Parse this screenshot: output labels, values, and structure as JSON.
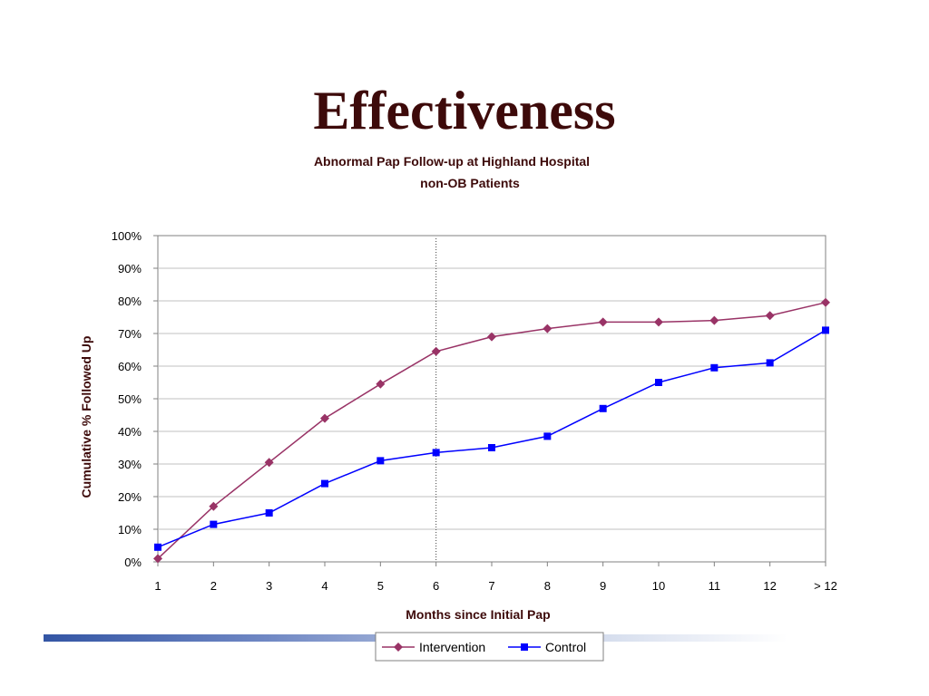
{
  "slide": {
    "title": "Effectiveness"
  },
  "colors": {
    "title": "#3d0a0a",
    "intervention": "#993366",
    "control": "#0000ff",
    "grid": "#c0c0c0",
    "axis": "#808080",
    "vline": "#404040",
    "accent": "#3355a4"
  },
  "chart_data": {
    "type": "line",
    "title": "Abnormal Pap Follow-up at Highland Hospital",
    "subtitle": "non-OB Patients",
    "xlabel": "Months since Initial Pap",
    "ylabel": "Cumulative % Followed Up",
    "categories": [
      "1",
      "2",
      "3",
      "4",
      "5",
      "6",
      "7",
      "8",
      "9",
      "10",
      "11",
      "12",
      "> 12"
    ],
    "ylim": [
      0,
      100
    ],
    "yticks": [
      0,
      10,
      20,
      30,
      40,
      50,
      60,
      70,
      80,
      90,
      100
    ],
    "ytick_labels": [
      "0%",
      "10%",
      "20%",
      "30%",
      "40%",
      "50%",
      "60%",
      "70%",
      "80%",
      "90%",
      "100%"
    ],
    "grid": true,
    "reference_line_at": "6",
    "legend_position": "bottom",
    "series": [
      {
        "name": "Intervention",
        "marker": "diamond",
        "values": [
          1,
          17,
          30.5,
          44,
          54.5,
          64.5,
          69,
          71.5,
          73.5,
          73.5,
          74,
          75.5,
          79.5
        ]
      },
      {
        "name": "Control",
        "marker": "square",
        "values": [
          4.5,
          11.5,
          15,
          24,
          31,
          33.5,
          35,
          38.5,
          47,
          55,
          59.5,
          61,
          71
        ]
      }
    ]
  }
}
